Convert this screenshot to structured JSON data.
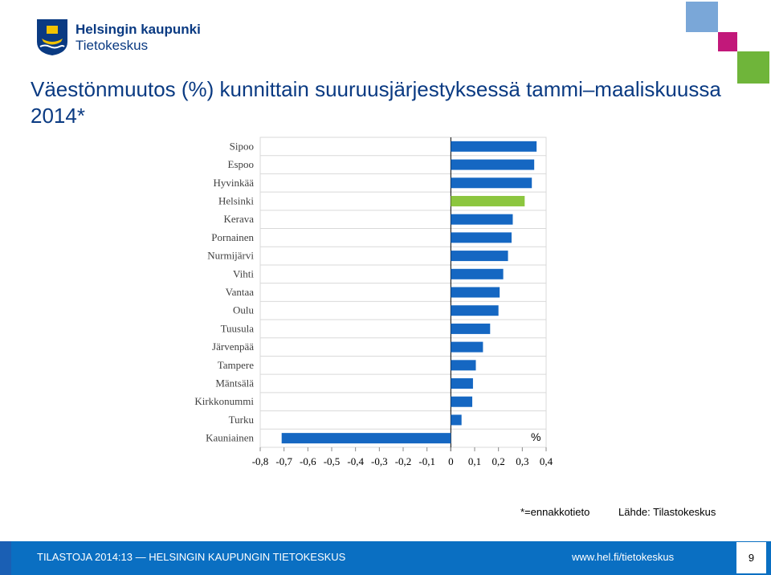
{
  "header": {
    "logo_line1": "Helsingin kaupunki",
    "logo_line2": "Tietokeskus"
  },
  "colors": {
    "brand_blue": "#0a3a82",
    "bar_blue": "#1567c2",
    "bar_highlight": "#8cc63f",
    "footer_blue": "#0a6fc2",
    "square_blue": "#7aa7d8",
    "square_magenta": "#c2187a",
    "square_green": "#6fb53a"
  },
  "title": "Väestönmuutos (%) kunnittain suuruusjärjestyksessä tammi–maaliskuussa 2014*",
  "chart_data": {
    "type": "bar",
    "orientation": "horizontal",
    "categories": [
      "Sipoo",
      "Espoo",
      "Hyvinkää",
      "Helsinki",
      "Kerava",
      "Pornainen",
      "Nurmijärvi",
      "Vihti",
      "Vantaa",
      "Oulu",
      "Tuusula",
      "Järvenpää",
      "Tampere",
      "Mäntsälä",
      "Kirkkonummi",
      "Turku",
      "Kauniainen"
    ],
    "values": [
      0.36,
      0.35,
      0.34,
      0.31,
      0.26,
      0.255,
      0.24,
      0.22,
      0.205,
      0.2,
      0.165,
      0.135,
      0.105,
      0.093,
      0.09,
      0.045,
      -0.71
    ],
    "highlight": "Helsinki",
    "xlim": [
      -0.8,
      0.4
    ],
    "x_ticks": [
      "-0,8",
      "-0,7",
      "-0,6",
      "-0,5",
      "-0,4",
      "-0,3",
      "-0,2",
      "-0,1",
      "0",
      "0,1",
      "0,2",
      "0,3",
      "0,4"
    ],
    "x_tick_values": [
      -0.8,
      -0.7,
      -0.6,
      -0.5,
      -0.4,
      -0.3,
      -0.2,
      -0.1,
      0,
      0.1,
      0.2,
      0.3,
      0.4
    ],
    "unit_label": "%",
    "grid": true
  },
  "notes": {
    "footnote": "*=ennakkotieto",
    "source": "Lähde: Tilastokeskus"
  },
  "footer": {
    "left": "TILASTOJA 2014:13 — HELSINGIN KAUPUNGIN TIETOKESKUS",
    "right": "www.hel.fi/tietokeskus",
    "page": "9"
  }
}
